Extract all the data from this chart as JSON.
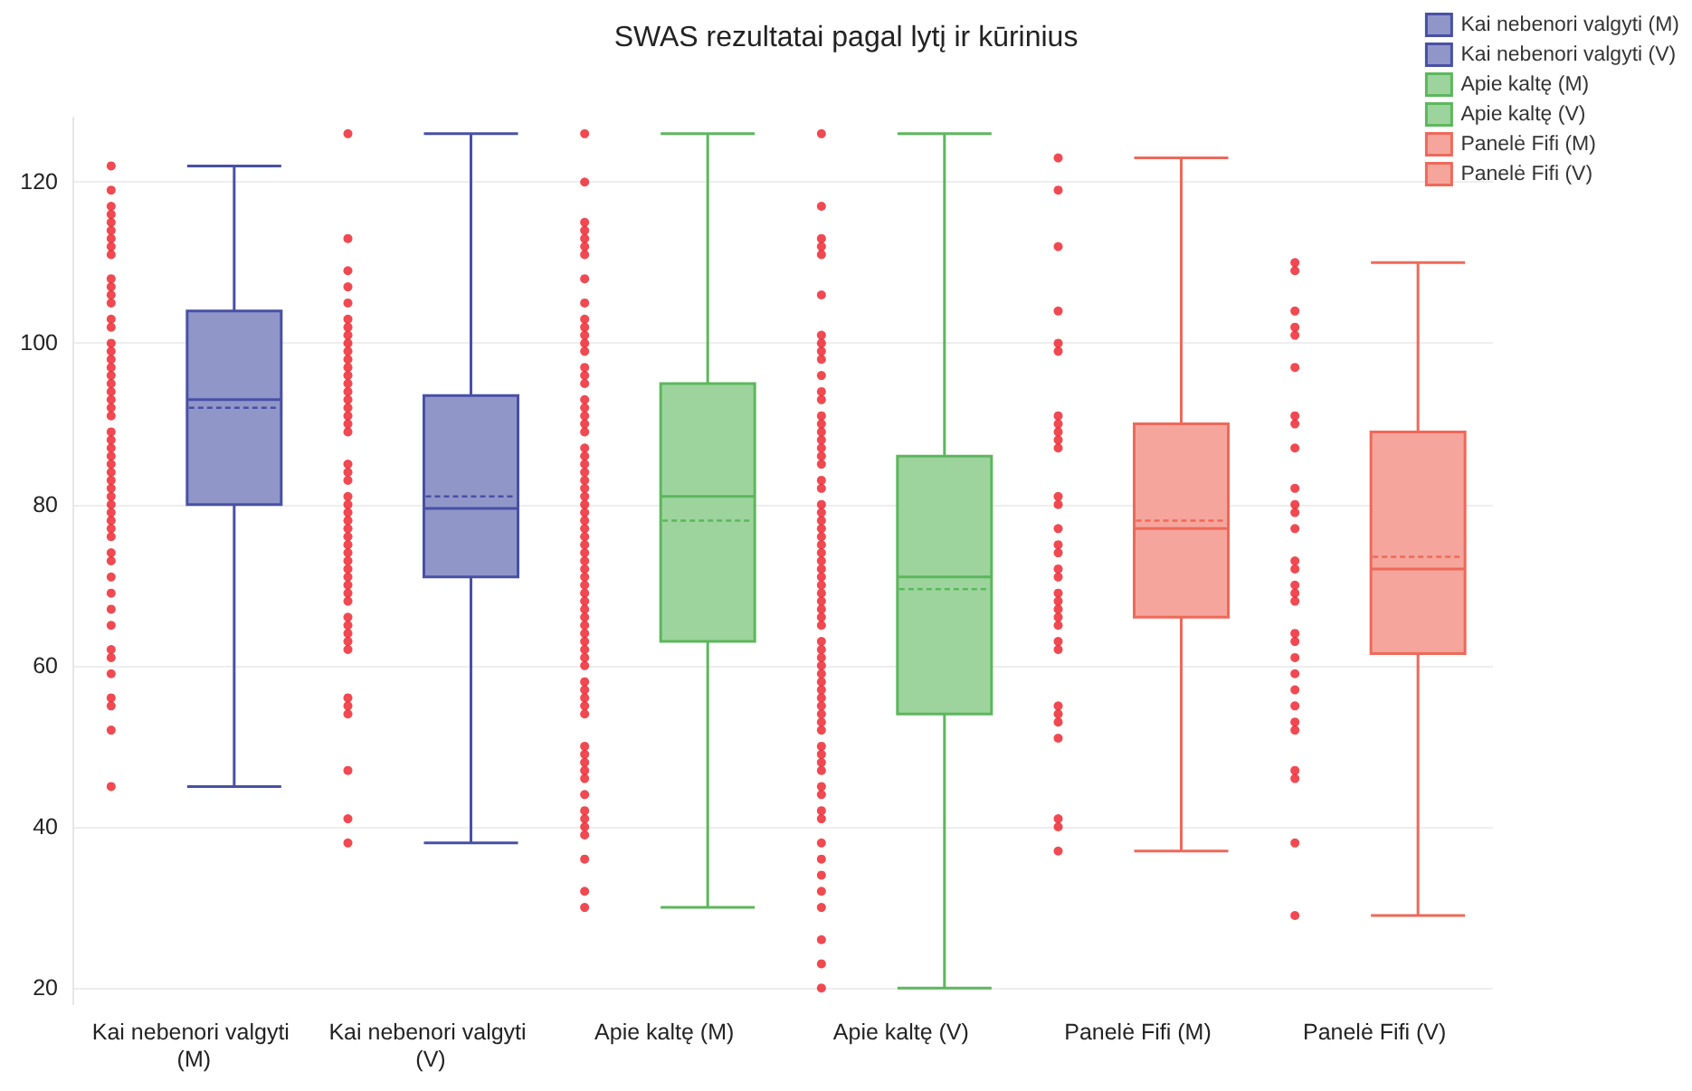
{
  "chart_data": {
    "type": "box",
    "title": "SWAS rezultatai pagal lytį ir kūrinius",
    "categories": [
      "Kai nebenori valgyti (M)",
      "Kai nebenori valgyti (V)",
      "Apie kaltę (M)",
      "Apie kaltę (V)",
      "Panelė Fifi (M)",
      "Panelė Fifi (V)"
    ],
    "ylim": [
      18,
      128
    ],
    "yticks": [
      20,
      40,
      60,
      80,
      100,
      120
    ],
    "grid": "y",
    "legend": "top right",
    "series": [
      {
        "type": "box",
        "name": "Kai nebenori valgyti (M)",
        "color": "#9196c9",
        "boxes": [
          {
            "low": 45,
            "q1": 80,
            "median": 93,
            "q3": 104,
            "high": 122,
            "mean": 92
          },
          null,
          null,
          null,
          null,
          null
        ]
      },
      {
        "type": "box",
        "name": "Kai nebenori valgyti (V)",
        "color": "#9196c9",
        "boxes": [
          null,
          {
            "low": 38,
            "q1": 71,
            "median": 79.5,
            "q3": 93.5,
            "high": 126,
            "mean": 81
          },
          null,
          null,
          null,
          null
        ]
      },
      {
        "type": "box",
        "name": "Apie kaltę (M)",
        "color": "#9dd49d",
        "boxes": [
          null,
          null,
          {
            "low": 30,
            "q1": 63,
            "median": 81,
            "q3": 95,
            "high": 126,
            "mean": 78
          },
          null,
          null,
          null
        ]
      },
      {
        "type": "box",
        "name": "Apie kaltę (V)",
        "color": "#9dd49d",
        "boxes": [
          null,
          null,
          null,
          {
            "low": 20,
            "q1": 54,
            "median": 71,
            "q3": 86,
            "high": 126,
            "mean": 69.5
          },
          null,
          null
        ]
      },
      {
        "type": "box",
        "name": "Panelė Fifi (M)",
        "color": "#f5a59c",
        "boxes": [
          null,
          null,
          null,
          null,
          {
            "low": 37,
            "q1": 66,
            "median": 77,
            "q3": 90,
            "high": 123,
            "mean": 78
          },
          null
        ]
      },
      {
        "type": "box",
        "name": "Panelė Fifi (V)",
        "color": "#f5a59c",
        "boxes": [
          null,
          null,
          null,
          null,
          null,
          {
            "low": 29,
            "q1": 61.5,
            "median": 72,
            "q3": 89,
            "high": 110,
            "mean": 73.5
          }
        ]
      },
      {
        "type": "scatter",
        "color": "#ee1c25",
        "x": [
          "Kai nebenori valgyti (M)",
          "Kai nebenori valgyti (M)",
          "Kai nebenori valgyti (M)",
          "Kai nebenori valgyti (M)",
          "Kai nebenori valgyti (M)",
          "Kai nebenori valgyti (M)",
          "Kai nebenori valgyti (M)",
          "Kai nebenori valgyti (M)",
          "Kai nebenori valgyti (M)",
          "Kai nebenori valgyti (M)",
          "Kai nebenori valgyti (M)",
          "Kai nebenori valgyti (M)",
          "Kai nebenori valgyti (M)",
          "Kai nebenori valgyti (M)",
          "Kai nebenori valgyti (M)",
          "Kai nebenori valgyti (M)",
          "Kai nebenori valgyti (M)",
          "Kai nebenori valgyti (M)",
          "Kai nebenori valgyti (M)",
          "Kai nebenori valgyti (M)",
          "Kai nebenori valgyti (M)",
          "Kai nebenori valgyti (M)",
          "Kai nebenori valgyti (M)",
          "Kai nebenori valgyti (M)",
          "Kai nebenori valgyti (M)",
          "Kai nebenori valgyti (M)",
          "Kai nebenori valgyti (M)",
          "Kai nebenori valgyti (M)",
          "Kai nebenori valgyti (M)",
          "Kai nebenori valgyti (M)",
          "Kai nebenori valgyti (M)",
          "Kai nebenori valgyti (M)",
          "Kai nebenori valgyti (M)",
          "Kai nebenori valgyti (M)",
          "Kai nebenori valgyti (M)",
          "Kai nebenori valgyti (M)",
          "Kai nebenori valgyti (M)",
          "Kai nebenori valgyti (M)",
          "Kai nebenori valgyti (M)",
          "Kai nebenori valgyti (M)",
          "Kai nebenori valgyti (M)",
          "Kai nebenori valgyti (M)",
          "Kai nebenori valgyti (M)",
          "Kai nebenori valgyti (M)",
          "Kai nebenori valgyti (M)",
          "Kai nebenori valgyti (M)",
          "Kai nebenori valgyti (M)",
          "Kai nebenori valgyti (M)",
          "Kai nebenori valgyti (M)",
          "Kai nebenori valgyti (M)",
          "Kai nebenori valgyti (M)",
          "Kai nebenori valgyti (M)",
          "Kai nebenori valgyti (V)",
          "Kai nebenori valgyti (V)",
          "Kai nebenori valgyti (V)",
          "Kai nebenori valgyti (V)",
          "Kai nebenori valgyti (V)",
          "Kai nebenori valgyti (V)",
          "Kai nebenori valgyti (V)",
          "Kai nebenori valgyti (V)",
          "Kai nebenori valgyti (V)",
          "Kai nebenori valgyti (V)",
          "Kai nebenori valgyti (V)",
          "Kai nebenori valgyti (V)",
          "Kai nebenori valgyti (V)",
          "Kai nebenori valgyti (V)",
          "Kai nebenori valgyti (V)",
          "Kai nebenori valgyti (V)",
          "Kai nebenori valgyti (V)",
          "Kai nebenori valgyti (V)",
          "Kai nebenori valgyti (V)",
          "Kai nebenori valgyti (V)",
          "Kai nebenori valgyti (V)",
          "Kai nebenori valgyti (V)",
          "Kai nebenori valgyti (V)",
          "Kai nebenori valgyti (V)",
          "Kai nebenori valgyti (V)",
          "Kai nebenori valgyti (V)",
          "Kai nebenori valgyti (V)",
          "Kai nebenori valgyti (V)",
          "Kai nebenori valgyti (V)",
          "Kai nebenori valgyti (V)",
          "Kai nebenori valgyti (V)",
          "Kai nebenori valgyti (V)",
          "Kai nebenori valgyti (V)",
          "Kai nebenori valgyti (V)",
          "Kai nebenori valgyti (V)",
          "Kai nebenori valgyti (V)",
          "Kai nebenori valgyti (V)",
          "Kai nebenori valgyti (V)",
          "Kai nebenori valgyti (V)",
          "Kai nebenori valgyti (V)",
          "Kai nebenori valgyti (V)",
          "Kai nebenori valgyti (V)",
          "Kai nebenori valgyti (V)",
          "Kai nebenori valgyti (V)",
          "Kai nebenori valgyti (V)",
          "Kai nebenori valgyti (V)",
          "Kai nebenori valgyti (V)",
          "Kai nebenori valgyti (V)",
          "Apie kaltę (M)",
          "Apie kaltę (M)",
          "Apie kaltę (M)",
          "Apie kaltę (M)",
          "Apie kaltę (M)",
          "Apie kaltę (M)",
          "Apie kaltę (M)",
          "Apie kaltę (M)",
          "Apie kaltę (M)",
          "Apie kaltę (M)",
          "Apie kaltę (M)",
          "Apie kaltę (M)",
          "Apie kaltę (M)",
          "Apie kaltę (M)",
          "Apie kaltę (M)",
          "Apie kaltę (M)",
          "Apie kaltę (M)",
          "Apie kaltę (M)",
          "Apie kaltę (M)",
          "Apie kaltę (M)",
          "Apie kaltę (M)",
          "Apie kaltę (M)",
          "Apie kaltę (M)",
          "Apie kaltę (M)",
          "Apie kaltę (M)",
          "Apie kaltę (M)",
          "Apie kaltę (M)",
          "Apie kaltę (M)",
          "Apie kaltę (M)",
          "Apie kaltę (M)",
          "Apie kaltę (M)",
          "Apie kaltę (M)",
          "Apie kaltę (M)",
          "Apie kaltę (M)",
          "Apie kaltę (M)",
          "Apie kaltę (M)",
          "Apie kaltę (M)",
          "Apie kaltę (M)",
          "Apie kaltę (M)",
          "Apie kaltę (M)",
          "Apie kaltę (M)",
          "Apie kaltę (M)",
          "Apie kaltę (M)",
          "Apie kaltę (M)",
          "Apie kaltę (M)",
          "Apie kaltę (M)",
          "Apie kaltę (M)",
          "Apie kaltę (M)",
          "Apie kaltę (M)",
          "Apie kaltę (M)",
          "Apie kaltę (M)",
          "Apie kaltę (M)",
          "Apie kaltę (M)",
          "Apie kaltę (M)",
          "Apie kaltę (M)",
          "Apie kaltę (M)",
          "Apie kaltę (M)",
          "Apie kaltę (M)",
          "Apie kaltę (M)",
          "Apie kaltę (M)",
          "Apie kaltę (M)",
          "Apie kaltę (M)",
          "Apie kaltę (M)",
          "Apie kaltę (M)",
          "Apie kaltę (M)",
          "Apie kaltę (M)",
          "Apie kaltę (M)",
          "Apie kaltę (M)",
          "Apie kaltę (V)",
          "Apie kaltę (V)",
          "Apie kaltę (V)",
          "Apie kaltę (V)",
          "Apie kaltę (V)",
          "Apie kaltę (V)",
          "Apie kaltę (V)",
          "Apie kaltę (V)",
          "Apie kaltę (V)",
          "Apie kaltę (V)",
          "Apie kaltę (V)",
          "Apie kaltę (V)",
          "Apie kaltę (V)",
          "Apie kaltę (V)",
          "Apie kaltę (V)",
          "Apie kaltę (V)",
          "Apie kaltę (V)",
          "Apie kaltę (V)",
          "Apie kaltę (V)",
          "Apie kaltę (V)",
          "Apie kaltę (V)",
          "Apie kaltę (V)",
          "Apie kaltę (V)",
          "Apie kaltę (V)",
          "Apie kaltę (V)",
          "Apie kaltę (V)",
          "Apie kaltę (V)",
          "Apie kaltę (V)",
          "Apie kaltę (V)",
          "Apie kaltę (V)",
          "Apie kaltę (V)",
          "Apie kaltę (V)",
          "Apie kaltę (V)",
          "Apie kaltę (V)",
          "Apie kaltę (V)",
          "Apie kaltę (V)",
          "Apie kaltę (V)",
          "Apie kaltę (V)",
          "Apie kaltę (V)",
          "Apie kaltę (V)",
          "Apie kaltę (V)",
          "Apie kaltę (V)",
          "Apie kaltę (V)",
          "Apie kaltę (V)",
          "Apie kaltę (V)",
          "Apie kaltę (V)",
          "Apie kaltę (V)",
          "Apie kaltę (V)",
          "Apie kaltę (V)",
          "Apie kaltę (V)",
          "Apie kaltę (V)",
          "Apie kaltę (V)",
          "Apie kaltę (V)",
          "Apie kaltę (V)",
          "Apie kaltę (V)",
          "Apie kaltę (V)",
          "Apie kaltę (V)",
          "Apie kaltę (V)",
          "Apie kaltę (V)",
          "Apie kaltę (V)",
          "Apie kaltę (V)",
          "Apie kaltę (V)",
          "Apie kaltę (V)",
          "Apie kaltę (V)",
          "Apie kaltę (V)",
          "Apie kaltę (V)",
          "Panelė Fifi (M)",
          "Panelė Fifi (M)",
          "Panelė Fifi (M)",
          "Panelė Fifi (M)",
          "Panelė Fifi (M)",
          "Panelė Fifi (M)",
          "Panelė Fifi (M)",
          "Panelė Fifi (M)",
          "Panelė Fifi (M)",
          "Panelė Fifi (M)",
          "Panelė Fifi (M)",
          "Panelė Fifi (M)",
          "Panelė Fifi (M)",
          "Panelė Fifi (M)",
          "Panelė Fifi (M)",
          "Panelė Fifi (M)",
          "Panelė Fifi (M)",
          "Panelė Fifi (M)",
          "Panelė Fifi (M)",
          "Panelė Fifi (M)",
          "Panelė Fifi (M)",
          "Panelė Fifi (M)",
          "Panelė Fifi (M)",
          "Panelė Fifi (M)",
          "Panelė Fifi (M)",
          "Panelė Fifi (M)",
          "Panelė Fifi (M)",
          "Panelė Fifi (M)",
          "Panelė Fifi (M)",
          "Panelė Fifi (M)",
          "Panelė Fifi (M)",
          "Panelė Fifi (M)",
          "Panelė Fifi (V)",
          "Panelė Fifi (V)",
          "Panelė Fifi (V)",
          "Panelė Fifi (V)",
          "Panelė Fifi (V)",
          "Panelė Fifi (V)",
          "Panelė Fifi (V)",
          "Panelė Fifi (V)",
          "Panelė Fifi (V)",
          "Panelė Fifi (V)",
          "Panelė Fifi (V)",
          "Panelė Fifi (V)",
          "Panelė Fifi (V)",
          "Panelė Fifi (V)",
          "Panelė Fifi (V)",
          "Panelė Fifi (V)",
          "Panelė Fifi (V)",
          "Panelė Fifi (V)",
          "Panelė Fifi (V)",
          "Panelė Fifi (V)",
          "Panelė Fifi (V)",
          "Panelė Fifi (V)",
          "Panelė Fifi (V)",
          "Panelė Fifi (V)",
          "Panelė Fifi (V)",
          "Panelė Fifi (V)",
          "Panelė Fifi (V)",
          "Panelė Fifi (V)",
          "Panelė Fifi (V)",
          "Panelė Fifi (V)"
        ],
        "values": [
          122,
          119,
          117,
          116,
          115,
          114,
          113,
          112,
          111,
          108,
          107,
          106,
          105,
          103,
          102,
          100,
          99,
          98,
          97,
          96,
          95,
          94,
          93,
          92,
          91,
          89,
          88,
          87,
          86,
          85,
          84,
          83,
          82,
          81,
          80,
          79,
          78,
          77,
          76,
          74,
          73,
          71,
          69,
          67,
          65,
          62,
          61,
          59,
          56,
          55,
          52,
          45,
          126,
          113,
          109,
          107,
          105,
          103,
          102,
          101,
          100,
          99,
          98,
          97,
          96,
          95,
          94,
          93,
          92,
          91,
          90,
          89,
          85,
          84,
          83,
          81,
          80,
          79,
          78,
          77,
          76,
          75,
          74,
          73,
          72,
          71,
          70,
          69,
          68,
          66,
          65,
          64,
          63,
          62,
          56,
          55,
          54,
          47,
          41,
          38,
          126,
          120,
          115,
          114,
          113,
          112,
          111,
          108,
          105,
          103,
          102,
          101,
          100,
          99,
          97,
          96,
          95,
          93,
          92,
          91,
          90,
          89,
          87,
          86,
          85,
          84,
          83,
          82,
          81,
          80,
          79,
          78,
          77,
          76,
          75,
          74,
          73,
          72,
          71,
          70,
          69,
          68,
          67,
          66,
          65,
          64,
          63,
          62,
          61,
          60,
          58,
          57,
          56,
          55,
          54,
          50,
          49,
          48,
          47,
          46,
          44,
          42,
          41,
          40,
          39,
          36,
          32,
          30,
          126,
          117,
          113,
          112,
          111,
          106,
          101,
          100,
          99,
          98,
          96,
          94,
          93,
          91,
          90,
          89,
          88,
          87,
          86,
          85,
          83,
          82,
          80,
          79,
          78,
          77,
          76,
          75,
          74,
          73,
          72,
          71,
          70,
          69,
          68,
          67,
          66,
          65,
          63,
          62,
          61,
          60,
          59,
          58,
          57,
          56,
          55,
          54,
          53,
          52,
          50,
          49,
          48,
          47,
          45,
          44,
          42,
          41,
          38,
          36,
          34,
          32,
          30,
          26,
          23,
          20,
          123,
          119,
          112,
          104,
          100,
          99,
          91,
          90,
          89,
          88,
          87,
          81,
          80,
          77,
          75,
          74,
          72,
          71,
          69,
          68,
          67,
          66,
          65,
          63,
          62,
          55,
          54,
          53,
          51,
          41,
          40,
          37,
          110,
          109,
          104,
          102,
          101,
          97,
          91,
          90,
          87,
          82,
          80,
          79,
          77,
          73,
          72,
          70,
          69,
          68,
          64,
          63,
          61,
          59,
          57,
          55,
          53,
          52,
          47,
          46,
          38,
          29
        ]
      }
    ]
  }
}
